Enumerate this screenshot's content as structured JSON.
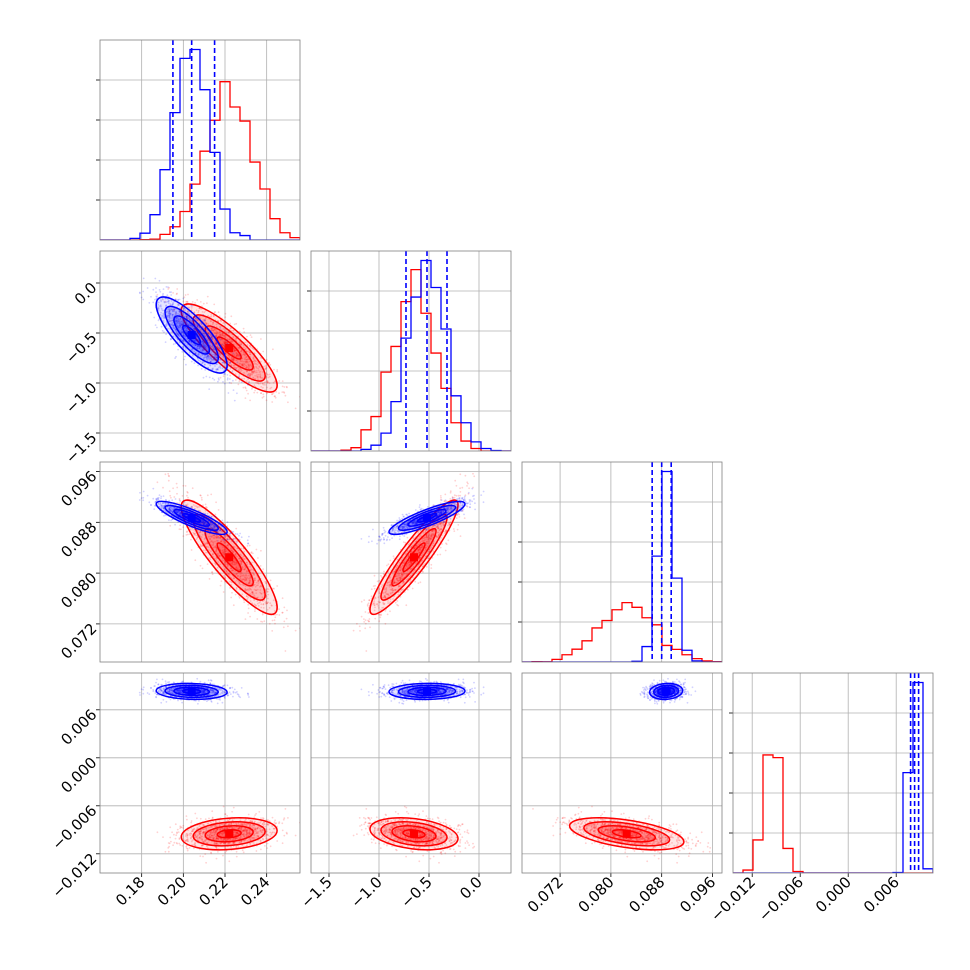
{
  "chart_data": {
    "type": "corner",
    "colors": {
      "red": "#ff0000",
      "blue": "#0000ff"
    },
    "grid": true,
    "n_params": 4,
    "params": [
      {
        "range": [
          0.16,
          0.256
        ],
        "ticks": [
          0.18,
          0.2,
          0.22,
          0.24
        ],
        "tick_labels": [
          "0.18",
          "0.20",
          "0.22",
          "0.24"
        ]
      },
      {
        "range": [
          -1.68,
          0.32
        ],
        "ticks": [
          -1.5,
          -1.0,
          -0.5,
          0.0
        ],
        "tick_labels": [
          "−1.5",
          "−1.0",
          "−0.5",
          "0.0"
        ]
      },
      {
        "range": [
          0.066,
          0.0975
        ],
        "ticks": [
          0.072,
          0.08,
          0.088,
          0.096
        ],
        "tick_labels": [
          "0.072",
          "0.080",
          "0.088",
          "0.096"
        ]
      },
      {
        "range": [
          -0.0144,
          0.0106
        ],
        "ticks": [
          -0.012,
          -0.006,
          0.0,
          0.006
        ],
        "tick_labels": [
          "−0.012",
          "−0.006",
          "0.000",
          "0.006"
        ]
      }
    ],
    "series": [
      {
        "name": "",
        "color": "#ff0000",
        "means": [
          0.222,
          -0.65,
          0.0825,
          -0.0095
        ],
        "sds": [
          0.0115,
          0.22,
          0.0045,
          0.001
        ],
        "corr": [
          [
            1,
            -0.85,
            -0.88,
            0.2
          ],
          [
            -0.85,
            1,
            0.92,
            -0.3
          ],
          [
            -0.88,
            0.92,
            1,
            -0.5
          ],
          [
            0.2,
            -0.3,
            -0.5,
            1
          ]
        ],
        "quantiles": null
      },
      {
        "name": "",
        "color": "#0000ff",
        "means": [
          0.204,
          -0.52,
          0.0887,
          0.0083
        ],
        "sds": [
          0.0085,
          0.19,
          0.0013,
          0.0005
        ],
        "corr": [
          [
            1,
            -0.8,
            -0.85,
            -0.1
          ],
          [
            -0.8,
            1,
            0.85,
            0.05
          ],
          [
            -0.85,
            0.85,
            1,
            0.1
          ],
          [
            -0.1,
            0.05,
            0.1,
            1
          ]
        ],
        "quantiles": [
          [
            0.195,
            0.204,
            0.215
          ],
          [
            -0.73,
            -0.52,
            -0.32
          ],
          [
            0.0865,
            0.088,
            0.0895
          ],
          [
            0.0078,
            0.0083,
            0.0088
          ]
        ]
      }
    ]
  }
}
